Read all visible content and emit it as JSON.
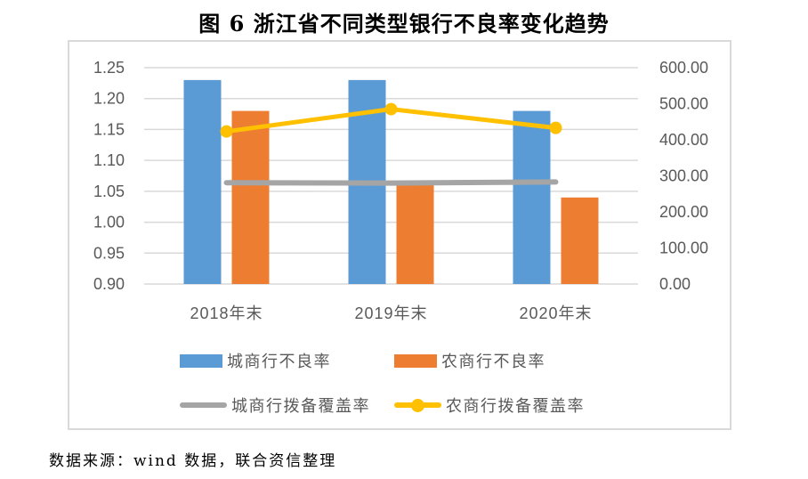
{
  "title": "图 6 浙江省不同类型银行不良率变化趋势",
  "source_note": "数据来源：wind 数据，联合资信整理",
  "colors": {
    "gridline": "#D9D9D9",
    "frame_border": "#D9D9D9",
    "axis_text": "#595959",
    "title_text": "#000000",
    "city_npl_bar": "#5B9BD5",
    "rural_npl_bar": "#ED7D31",
    "city_coverage_line": "#A5A5A5",
    "rural_coverage_line": "#FFC000"
  },
  "chart_data": {
    "type": "bar",
    "subtype": "combo-bar-line-dual-axis",
    "title": "图 6 浙江省不同类型银行不良率变化趋势",
    "categories": [
      "2018年末",
      "2019年末",
      "2020年末"
    ],
    "series": [
      {
        "key": "city-npl",
        "name": "城商行不良率",
        "type": "bar",
        "axis": "left",
        "color": "#5B9BD5",
        "values": [
          1.23,
          1.23,
          1.18
        ]
      },
      {
        "key": "rural-npl",
        "name": "农商行不良率",
        "type": "bar",
        "axis": "left",
        "color": "#ED7D31",
        "values": [
          1.18,
          1.06,
          1.04
        ]
      },
      {
        "key": "city-coverage",
        "name": "城商行拨备覆盖率",
        "type": "line",
        "axis": "right",
        "color": "#A5A5A5",
        "marker": false,
        "values": [
          281,
          280,
          283
        ]
      },
      {
        "key": "rural-coverage",
        "name": "农商行拨备覆盖率",
        "type": "line",
        "axis": "right",
        "color": "#FFC000",
        "marker": true,
        "values": [
          423,
          485,
          433
        ]
      }
    ],
    "left_axis": {
      "min": 0.9,
      "max": 1.25,
      "step": 0.05,
      "tick_labels": [
        "1.25",
        "1.20",
        "1.15",
        "1.10",
        "1.05",
        "1.00",
        "0.95",
        "0.90"
      ]
    },
    "right_axis": {
      "min": 0,
      "max": 600,
      "step": 100,
      "tick_labels": [
        "600.00",
        "500.00",
        "400.00",
        "300.00",
        "200.00",
        "100.00",
        "0.00"
      ]
    },
    "grid": true,
    "legend_position": "bottom"
  }
}
